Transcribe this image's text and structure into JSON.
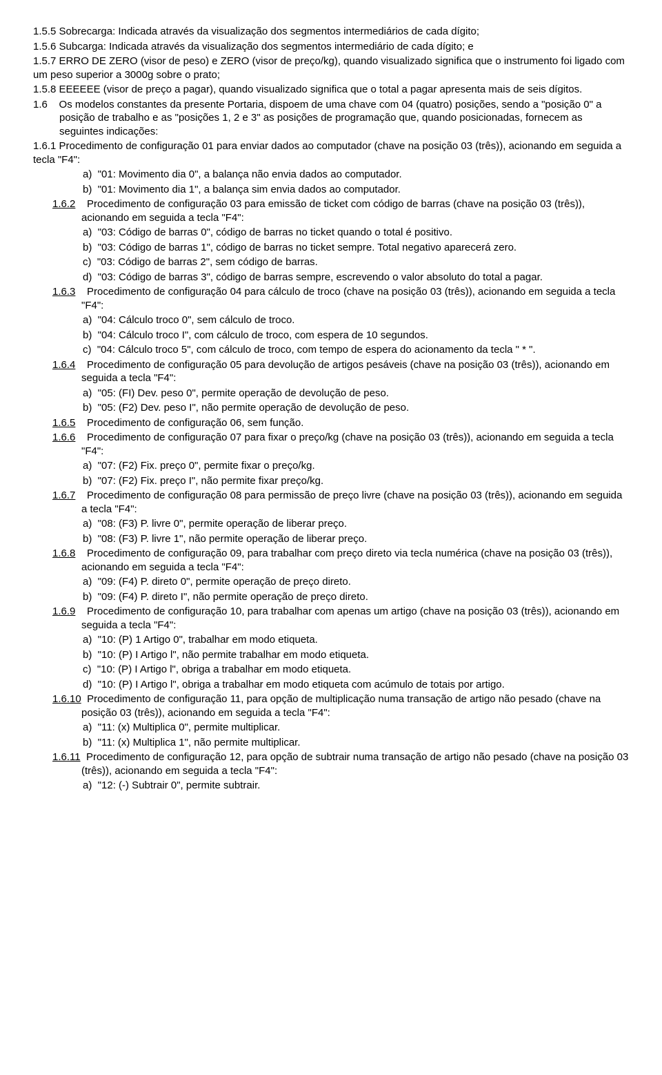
{
  "p155": {
    "num": "1.5.5",
    "text": "Sobrecarga: Indicada através da visualização dos segmentos intermediários de cada dígito;"
  },
  "p156": {
    "num": "1.5.6",
    "text": "Subcarga: Indicada através da visualização dos segmentos intermediário de cada dígito; e"
  },
  "p157": {
    "num": "1.5.7",
    "text": "ERRO DE ZERO (visor de peso) e ZERO (visor de preço/kg), quando visualizado significa que o instrumento foi ligado com um peso superior a 3000g sobre o prato;"
  },
  "p158": {
    "num": "1.5.8",
    "text": "EEEEEE (visor de preço a pagar), quando visualizado significa que o total a pagar apresenta mais de seis dígitos."
  },
  "p16": {
    "num": "1.6",
    "text": "Os modelos constantes da presente Portaria, dispoem de uma chave com 04 (quatro) posições, sendo a \"posição 0\" a posição de trabalho e as \"posições 1, 2 e 3\" as posições de programação que, quando posicionadas, fornecem as seguintes indicações:"
  },
  "p161": {
    "num": "1.6.1",
    "text": "Procedimento de configuração 01 para enviar dados ao computador (chave na posição 03 (três)), acionando em seguida a tecla \"F4\":",
    "a": "\"01: Movimento dia 0\", a balança não envia dados ao computador.",
    "b": "\"01: Movimento dia 1\", a balança sim envia dados ao computador."
  },
  "p162": {
    "num": "1.6.2",
    "text": "Procedimento de configuração 03 para emissão de ticket com código de barras (chave na posição 03 (três)), acionando em seguida a tecla \"F4\":",
    "a": "\"03: Código de barras 0\", código de barras no ticket quando o total é positivo.",
    "b": "\"03: Código de barras 1\", código de barras no ticket sempre. Total negativo aparecerá zero.",
    "c": "\"03: Código de barras 2\", sem código de barras.",
    "d": "\"03: Código de barras 3\", código de barras sempre, escrevendo o valor absoluto do total a pagar."
  },
  "p163": {
    "num": "1.6.3",
    "text": "Procedimento de configuração 04 para cálculo de troco (chave na posição 03 (três)), acionando em seguida a tecla \"F4\":",
    "a": "\"04: Cálculo troco 0\", sem cálculo de troco.",
    "b": "\"04: Cálculo troco I\", com cálculo de troco, com espera de 10 segundos.",
    "c": "\"04: Cálculo troco 5\", com cálculo de troco, com tempo de espera do acionamento da tecla \" * \"."
  },
  "p164": {
    "num": "1.6.4",
    "text": "Procedimento de configuração 05 para devolução de artigos pesáveis (chave na posição 03 (três)), acionando em seguida a tecla \"F4\":",
    "a": "\"05: (FI) Dev. peso 0\", permite operação de devolução de peso.",
    "b": "\"05: (F2) Dev. peso I\", não permite operação de devolução de peso."
  },
  "p165": {
    "num": "1.6.5",
    "text": "Procedimento de configuração 06, sem função."
  },
  "p166": {
    "num": "1.6.6",
    "text": "Procedimento de configuração 07 para fixar o preço/kg (chave na posição 03 (três)), acionando em seguida a tecla \"F4\":",
    "a": "\"07: (F2) Fix. preço 0\", permite fixar o preço/kg.",
    "b": "\"07: (F2) Fix. preço I\", não permite fixar preço/kg."
  },
  "p167": {
    "num": "1.6.7",
    "text": "Procedimento de configuração 08 para permissão de preço livre (chave na posição 03 (três)), acionando em seguida a tecla \"F4\":",
    "a": "\"08: (F3) P. livre 0\", permite operação de liberar preço.",
    "b": "\"08: (F3) P. livre 1\", não permite operação de liberar preço."
  },
  "p168": {
    "num": "1.6.8",
    "text": "Procedimento de configuração 09, para trabalhar com preço direto via tecla numérica (chave na posição 03 (três)), acionando em seguida a tecla \"F4\":",
    "a": "\"09: (F4) P. direto 0\", permite operação de preço direto.",
    "b": "\"09: (F4) P. direto I\", não permite operação de preço direto."
  },
  "p169": {
    "num": "1.6.9",
    "text": "Procedimento de configuração 10, para trabalhar com apenas um artigo (chave na posição 03 (três)), acionando em seguida a tecla \"F4\":",
    "a": "\"10: (P) 1 Artigo 0\", trabalhar em modo etiqueta.",
    "b": "\"10: (P) I Artigo l\", não permite trabalhar em modo etiqueta.",
    "c": "\"10: (P) I Artigo l\", obriga a trabalhar em modo etiqueta.",
    "d": "\"10: (P) I Artigo l\", obriga a trabalhar em modo etiqueta com acúmulo de totais por artigo."
  },
  "p1610": {
    "num": "1.6.10",
    "text": "Procedimento de configuração 11, para opção de multiplicação numa transação de artigo não pesado (chave na posição 03 (três)), acionando em seguida a tecla \"F4\":",
    "a": "\"11: (x) Multiplica 0\", permite multiplicar.",
    "b": "\"11: (x) Multiplica 1\", não permite multiplicar."
  },
  "p1611": {
    "num": "1.6.11",
    "text": "Procedimento de configuração 12, para opção de subtrair numa transação de artigo não pesado (chave na posição 03 (três)), acionando em seguida a tecla \"F4\":",
    "a": "\"12: (-) Subtrair 0\", permite subtrair."
  },
  "labels": {
    "a": "a)",
    "b": "b)",
    "c": "c)",
    "d": "d)"
  }
}
